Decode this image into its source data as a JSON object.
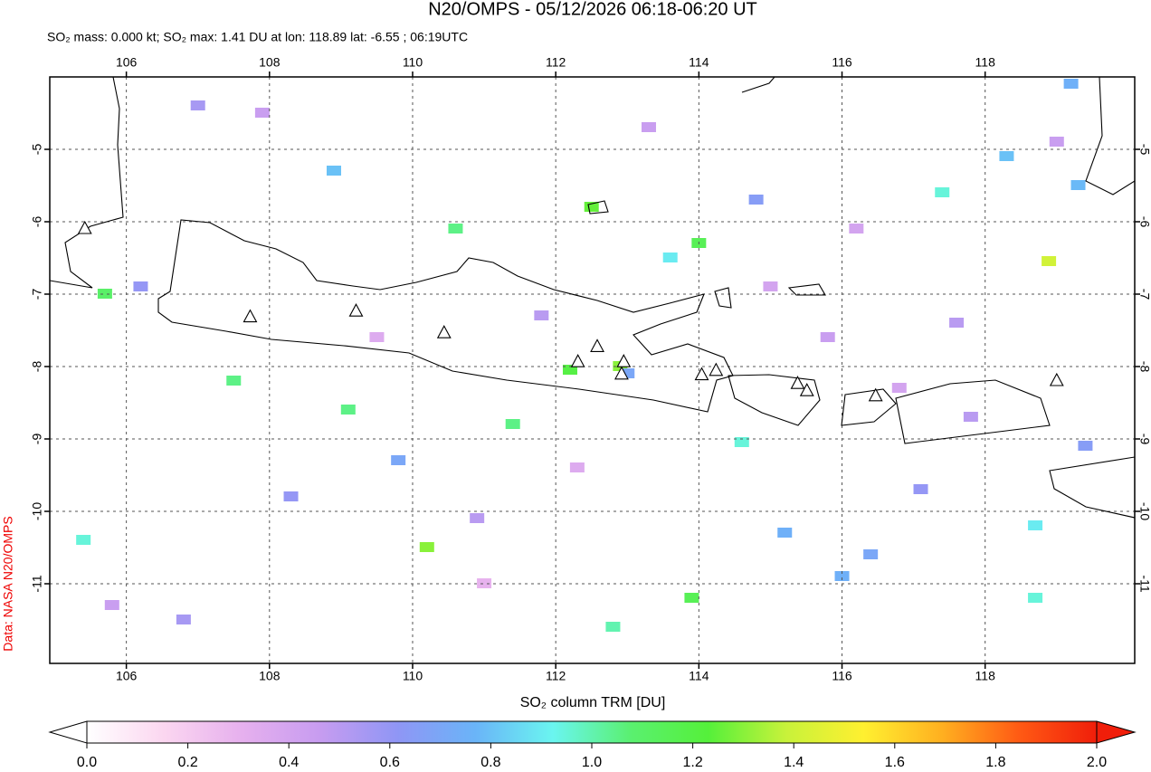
{
  "chart_data": {
    "type": "map",
    "title": "N20/OMPS - 05/12/2026 06:18-06:20 UT",
    "subtitle": "SO₂ mass: 0.000 kt; SO₂ max: 1.41 DU at lon: 118.89 lat: -6.55 ; 06:19UTC",
    "colorbar_label": "SO₂ column TRM [DU]",
    "credit": "Data: NASA N20/OMPS",
    "xlim": [
      104.93,
      120.09
    ],
    "ylim": [
      -12.1,
      -4
    ],
    "xticks": [
      106,
      108,
      110,
      112,
      114,
      116,
      118
    ],
    "yticks": [
      -5,
      -6,
      -7,
      -8,
      -9,
      -10,
      -11
    ],
    "grid": true,
    "clim": [
      0,
      2
    ],
    "cticks": [
      {
        "value": 0,
        "label": "0.0"
      },
      {
        "value": 0.2,
        "label": "0.2"
      },
      {
        "value": 0.4,
        "label": "0.4"
      },
      {
        "value": 0.6,
        "label": "0.6"
      },
      {
        "value": 0.8,
        "label": "0.8"
      },
      {
        "value": 1,
        "label": "1.0"
      },
      {
        "value": 1.2,
        "label": "1.2"
      },
      {
        "value": 1.4,
        "label": "1.4"
      },
      {
        "value": 1.6,
        "label": "1.6"
      },
      {
        "value": 1.8,
        "label": "1.8"
      },
      {
        "value": 2,
        "label": "2.0"
      }
    ],
    "colormap": [
      "#ffffff",
      "#fbd6f0",
      "#e6b0ee",
      "#c79cf0",
      "#8f96f5",
      "#6ab4f8",
      "#6af5f0",
      "#5af070",
      "#55f03a",
      "#c8f23a",
      "#fff030",
      "#ffb020",
      "#ff5a14",
      "#f01e0a"
    ],
    "pixels": {
      "lon": [
        118.89,
        112.5,
        114,
        118.3,
        119.3,
        117.4,
        112.2,
        112.9,
        110.2,
        114.6,
        116,
        118.7,
        118.7,
        105.4,
        113.9,
        112.8,
        105.7,
        107.5,
        109.1,
        109.8,
        111.4,
        115.2,
        116.4,
        117.1,
        119.2,
        119.4,
        110.6,
        108.9,
        107.0,
        106.2,
        111.8,
        113.3,
        114.8,
        115.8,
        117.8,
        113.6,
        108.3,
        106.8,
        110.9,
        115.0,
        116.8,
        119.0,
        107.9,
        112.3,
        113.0,
        117.6,
        105.8,
        109.5,
        111.0,
        116.2
      ],
      "lat": [
        -6.55,
        -5.8,
        -6.3,
        -5.1,
        -5.5,
        -5.6,
        -8.05,
        -8.0,
        -10.5,
        -9.05,
        -10.9,
        -10.2,
        -11.2,
        -10.4,
        -11.2,
        -11.6,
        -7.0,
        -8.2,
        -8.6,
        -9.3,
        -8.8,
        -10.3,
        -10.6,
        -9.7,
        -4.1,
        -9.1,
        -6.1,
        -5.3,
        -4.4,
        -6.9,
        -7.3,
        -4.7,
        -5.7,
        -7.6,
        -8.7,
        -6.5,
        -9.8,
        -11.5,
        -10.1,
        -6.9,
        -8.3,
        -4.9,
        -4.5,
        -9.4,
        -8.1,
        -7.4,
        -11.3,
        -7.6,
        -11.0,
        -6.1
      ],
      "values": [
        1.41,
        1.25,
        1.15,
        0.8,
        0.78,
        0.95,
        1.2,
        1.3,
        1.3,
        0.95,
        0.75,
        0.9,
        0.95,
        0.95,
        1.15,
        1.0,
        1.1,
        1.05,
        1.05,
        0.7,
        1.05,
        0.75,
        0.7,
        0.6,
        0.75,
        0.65,
        1.05,
        0.8,
        0.55,
        0.6,
        0.5,
        0.45,
        0.65,
        0.45,
        0.5,
        0.9,
        0.6,
        0.55,
        0.5,
        0.4,
        0.4,
        0.45,
        0.45,
        0.35,
        0.7,
        0.5,
        0.45,
        0.35,
        0.3,
        0.4
      ]
    },
    "volcanoes": {
      "lon": [
        105.42,
        107.73,
        109.21,
        110.44,
        112.31,
        112.58,
        112.95,
        112.92,
        114.04,
        114.24,
        115.38,
        115.51,
        116.47,
        119.0
      ],
      "lat": [
        -6.1,
        -7.32,
        -7.24,
        -7.54,
        -7.94,
        -7.73,
        -7.94,
        -8.11,
        -8.12,
        -8.06,
        -8.24,
        -8.34,
        -8.41,
        -8.2
      ]
    }
  }
}
